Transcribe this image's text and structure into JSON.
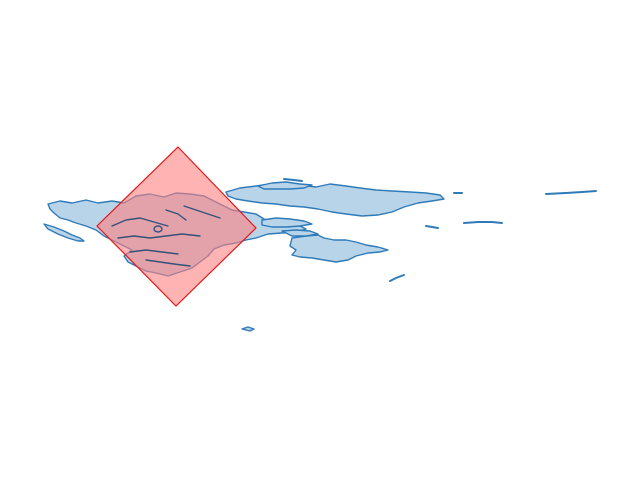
{
  "map": {
    "land_fill": "#b8d4e9",
    "land_stroke": "#2f7ab8",
    "overlay_fill": "#ff8080",
    "overlay_stroke": "#e31a1c",
    "overlay_shape": "diamond",
    "background": "#ffffff"
  }
}
